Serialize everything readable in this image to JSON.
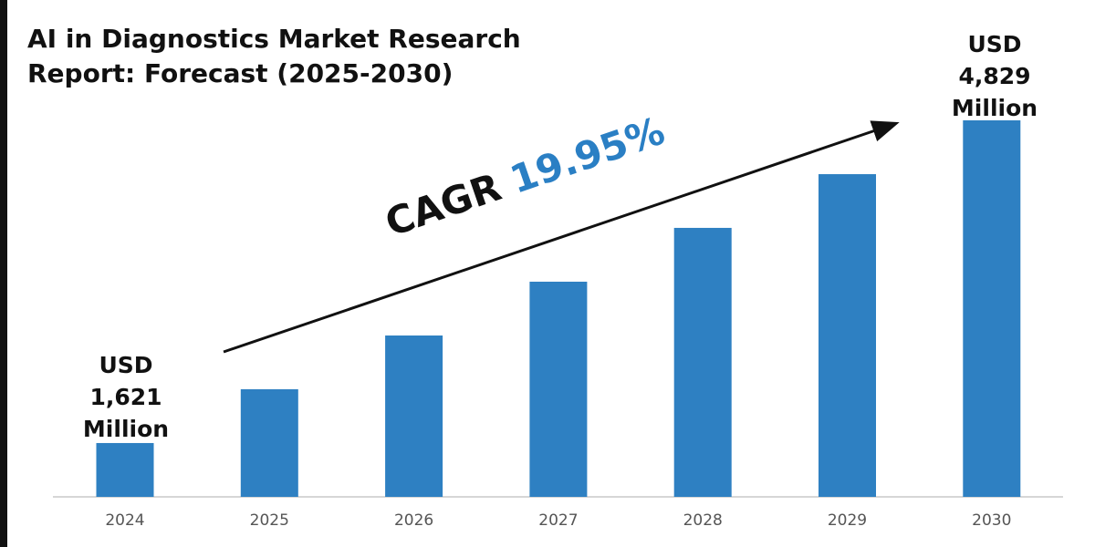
{
  "title": "AI in Diagnostics Market Research Report: Forecast (2025-2030)",
  "colors": {
    "bar": "#2e80c2",
    "cagr": "#2a7fc4",
    "axis": "#c8c8c8"
  },
  "chart_data": {
    "type": "bar",
    "title": "AI in Diagnostics Market Research Report: Forecast (2025-2030)",
    "categories": [
      "2024",
      "2025",
      "2026",
      "2027",
      "2028",
      "2029",
      "2030"
    ],
    "values": [
      1621,
      2156,
      2690,
      3225,
      3760,
      4294,
      4829
    ],
    "unit": "USD Million",
    "ylim": [
      1086,
      5000
    ],
    "grid": false,
    "xlabel": "",
    "ylabel": "",
    "annotations": {
      "start": {
        "line1": "USD",
        "line2": "1,621",
        "line3": "Million"
      },
      "end": {
        "line1": "USD",
        "line2": "4,829",
        "line3": "Million"
      },
      "cagr_label": "CAGR",
      "cagr_value": "19.95%"
    }
  }
}
